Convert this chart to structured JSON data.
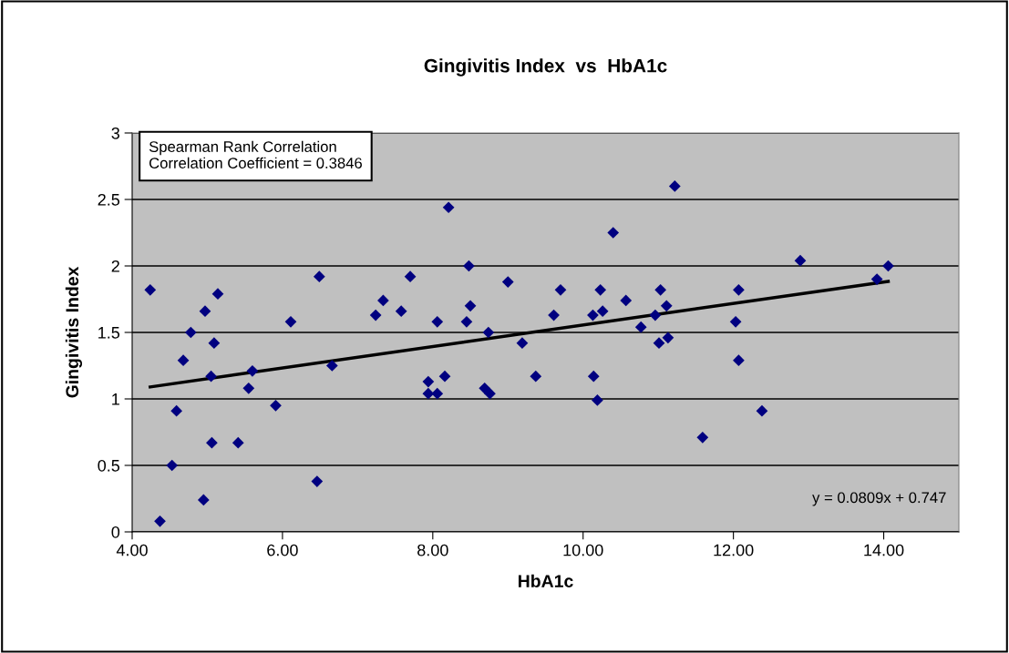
{
  "chart_data": {
    "type": "scatter",
    "title": "Gingivitis Index  vs  HbA1c",
    "xlabel": "HbA1c",
    "ylabel": "Gingivitis Index",
    "series": [
      {
        "color": "#000080",
        "marker": "diamond",
        "x": [
          4.24,
          4.37,
          4.53,
          4.59,
          4.68,
          4.78,
          4.95,
          4.97,
          5.05,
          5.06,
          5.09,
          5.14,
          5.41,
          5.55,
          5.6,
          5.91,
          6.11,
          6.46,
          6.49,
          6.66,
          7.24,
          7.34,
          7.58,
          7.7,
          7.94,
          7.94,
          8.06,
          8.06,
          8.16,
          8.21,
          8.45,
          8.48,
          8.5,
          8.69,
          8.76,
          8.74,
          9.0,
          9.19,
          9.37,
          9.61,
          9.7,
          10.14,
          10.13,
          10.19,
          10.23,
          10.26,
          10.4,
          10.57,
          10.77,
          10.96,
          11.01,
          11.03,
          11.11,
          11.13,
          11.22,
          11.59,
          12.03,
          12.07,
          12.07,
          12.38,
          12.89,
          13.91,
          14.06
        ],
        "values": [
          1.82,
          0.08,
          0.5,
          0.91,
          1.29,
          1.5,
          0.24,
          1.66,
          1.17,
          0.67,
          1.42,
          1.79,
          0.67,
          1.08,
          1.21,
          0.95,
          1.58,
          0.38,
          1.92,
          1.25,
          1.63,
          1.74,
          1.66,
          1.92,
          1.13,
          1.04,
          1.04,
          1.58,
          1.17,
          2.44,
          1.58,
          2.0,
          1.7,
          1.08,
          1.04,
          1.5,
          1.88,
          1.42,
          1.17,
          1.63,
          1.82,
          1.17,
          1.63,
          0.99,
          1.82,
          1.66,
          2.25,
          1.74,
          1.54,
          1.63,
          1.42,
          1.82,
          1.7,
          1.46,
          2.6,
          0.71,
          1.58,
          1.82,
          1.29,
          0.91,
          2.04,
          1.9,
          2.0
        ]
      },
      {
        "type": "line",
        "color": "#000000",
        "marker": "none",
        "x": [
          4.24,
          14.06
        ],
        "values": [
          1.09,
          1.884
        ]
      }
    ],
    "xlim": [
      4,
      15
    ],
    "xticks": [
      {
        "value": 4,
        "label": "4.00"
      },
      {
        "value": 6,
        "label": "6.00"
      },
      {
        "value": 8,
        "label": "8.00"
      },
      {
        "value": 10,
        "label": "10.00"
      },
      {
        "value": 12,
        "label": "12.00"
      },
      {
        "value": 14,
        "label": "14.00"
      }
    ],
    "ylim": [
      0,
      3
    ],
    "yticks": [
      0,
      0.5,
      1,
      1.5,
      2,
      2.5,
      3
    ],
    "grid": "y",
    "legend": false,
    "annotations": [
      "Spearman Rank Correlation\nCorrelation Coefficient = 0.3846",
      "y = 0.0809x + 0.747"
    ]
  }
}
